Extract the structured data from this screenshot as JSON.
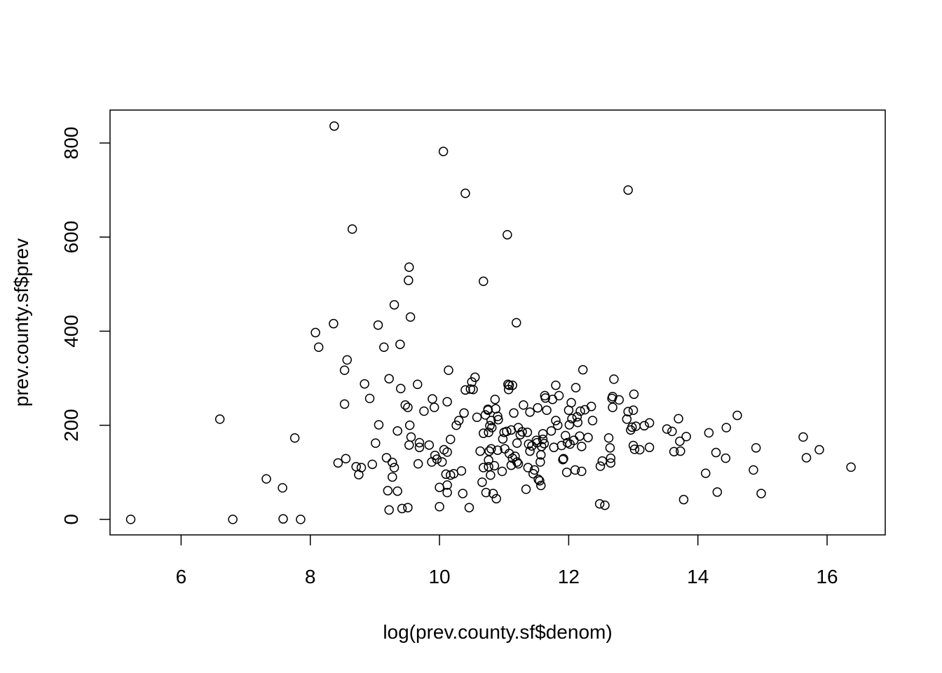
{
  "chart_data": {
    "type": "scatter",
    "title": "",
    "xlabel": "log(prev.county.sf$denom)",
    "ylabel": "prev.county.sf$prev",
    "xlim": [
      4.9,
      16.9
    ],
    "ylim": [
      -33,
      870
    ],
    "x_ticks": [
      6,
      8,
      10,
      12,
      14,
      16
    ],
    "y_ticks": [
      0,
      200,
      400,
      600,
      800
    ],
    "grid": false,
    "marker": "open-circle",
    "marker_color": "#000000",
    "series": [
      {
        "points": [
          [
            5.22,
            0
          ],
          [
            6.6,
            213
          ],
          [
            6.8,
            0
          ],
          [
            7.32,
            86
          ],
          [
            7.57,
            67
          ],
          [
            7.58,
            1
          ],
          [
            7.76,
            173
          ],
          [
            7.85,
            0
          ],
          [
            8.08,
            397
          ],
          [
            8.13,
            366
          ],
          [
            8.36,
            416
          ],
          [
            8.37,
            836
          ],
          [
            8.43,
            120
          ],
          [
            8.53,
            317
          ],
          [
            8.53,
            245
          ],
          [
            8.57,
            339
          ],
          [
            8.55,
            129
          ],
          [
            8.65,
            617
          ],
          [
            8.71,
            112
          ],
          [
            8.75,
            95
          ],
          [
            8.79,
            110
          ],
          [
            8.84,
            288
          ],
          [
            8.92,
            257
          ],
          [
            8.96,
            117
          ],
          [
            9.01,
            162
          ],
          [
            9.05,
            413
          ],
          [
            9.06,
            201
          ],
          [
            9.14,
            366
          ],
          [
            9.18,
            131
          ],
          [
            9.2,
            61
          ],
          [
            9.22,
            299
          ],
          [
            9.22,
            20
          ],
          [
            9.27,
            121
          ],
          [
            9.27,
            90
          ],
          [
            9.3,
            110
          ],
          [
            9.3,
            456
          ],
          [
            9.35,
            188
          ],
          [
            9.35,
            60
          ],
          [
            9.39,
            372
          ],
          [
            9.4,
            278
          ],
          [
            9.42,
            23
          ],
          [
            9.47,
            243
          ],
          [
            9.51,
            25
          ],
          [
            9.51,
            238
          ],
          [
            9.53,
            536
          ],
          [
            9.52,
            508
          ],
          [
            9.53,
            158
          ],
          [
            9.54,
            200
          ],
          [
            9.55,
            430
          ],
          [
            9.56,
            175
          ],
          [
            9.66,
            287
          ],
          [
            9.67,
            118
          ],
          [
            9.69,
            163
          ],
          [
            9.69,
            153
          ],
          [
            9.76,
            230
          ],
          [
            9.84,
            158
          ],
          [
            9.88,
            122
          ],
          [
            9.89,
            256
          ],
          [
            9.92,
            238
          ],
          [
            9.93,
            136
          ],
          [
            9.96,
            128
          ],
          [
            10.0,
            27
          ],
          [
            10.0,
            68
          ],
          [
            10.04,
            122
          ],
          [
            10.06,
            782
          ],
          [
            10.07,
            148
          ],
          [
            10.1,
            96
          ],
          [
            10.12,
            143
          ],
          [
            10.12,
            250
          ],
          [
            10.12,
            73
          ],
          [
            10.12,
            57
          ],
          [
            10.14,
            317
          ],
          [
            10.17,
            94
          ],
          [
            10.17,
            170
          ],
          [
            10.22,
            97
          ],
          [
            10.26,
            200
          ],
          [
            10.3,
            210
          ],
          [
            10.34,
            103
          ],
          [
            10.36,
            55
          ],
          [
            10.38,
            226
          ],
          [
            10.4,
            693
          ],
          [
            10.4,
            275
          ],
          [
            10.46,
            25
          ],
          [
            10.48,
            277
          ],
          [
            10.5,
            292
          ],
          [
            10.52,
            276
          ],
          [
            10.55,
            302
          ],
          [
            10.58,
            217
          ],
          [
            10.63,
            145
          ],
          [
            10.66,
            79
          ],
          [
            10.68,
            183
          ],
          [
            10.68,
            110
          ],
          [
            10.68,
            506
          ],
          [
            10.71,
            222
          ],
          [
            10.72,
            57
          ],
          [
            10.75,
            234
          ],
          [
            10.75,
            232
          ],
          [
            10.76,
            126
          ],
          [
            10.76,
            112
          ],
          [
            10.76,
            185
          ],
          [
            10.77,
            145
          ],
          [
            10.78,
            199
          ],
          [
            10.79,
            94
          ],
          [
            10.8,
            150
          ],
          [
            10.8,
            210
          ],
          [
            10.81,
            195
          ],
          [
            10.83,
            55
          ],
          [
            10.85,
            114
          ],
          [
            10.86,
            255
          ],
          [
            10.87,
            235
          ],
          [
            10.88,
            44
          ],
          [
            10.9,
            147
          ],
          [
            10.9,
            219
          ],
          [
            10.91,
            212
          ],
          [
            10.97,
            102
          ],
          [
            10.98,
            171
          ],
          [
            11.0,
            185
          ],
          [
            11.01,
            150
          ],
          [
            11.04,
            187
          ],
          [
            11.05,
            605
          ],
          [
            11.06,
            287
          ],
          [
            11.07,
            276
          ],
          [
            11.08,
            285
          ],
          [
            11.08,
            140
          ],
          [
            11.11,
            190
          ],
          [
            11.11,
            115
          ],
          [
            11.13,
            130
          ],
          [
            11.13,
            285
          ],
          [
            11.15,
            226
          ],
          [
            11.17,
            134
          ],
          [
            11.19,
            418
          ],
          [
            11.2,
            162
          ],
          [
            11.2,
            122
          ],
          [
            11.22,
            195
          ],
          [
            11.22,
            118
          ],
          [
            11.25,
            180
          ],
          [
            11.28,
            186
          ],
          [
            11.3,
            243
          ],
          [
            11.34,
            64
          ],
          [
            11.36,
            185
          ],
          [
            11.37,
            110
          ],
          [
            11.38,
            160
          ],
          [
            11.4,
            145
          ],
          [
            11.4,
            228
          ],
          [
            11.43,
            156
          ],
          [
            11.45,
            97
          ],
          [
            11.47,
            105
          ],
          [
            11.5,
            168
          ],
          [
            11.51,
            163
          ],
          [
            11.52,
            237
          ],
          [
            11.53,
            85
          ],
          [
            11.55,
            82
          ],
          [
            11.56,
            122
          ],
          [
            11.57,
            72
          ],
          [
            11.57,
            137
          ],
          [
            11.58,
            155
          ],
          [
            11.6,
            182
          ],
          [
            11.6,
            170
          ],
          [
            11.62,
            161
          ],
          [
            11.63,
            263
          ],
          [
            11.64,
            258
          ],
          [
            11.66,
            232
          ],
          [
            11.73,
            188
          ],
          [
            11.75,
            255
          ],
          [
            11.77,
            153
          ],
          [
            11.8,
            210
          ],
          [
            11.8,
            285
          ],
          [
            11.83,
            200
          ],
          [
            11.85,
            263
          ],
          [
            11.89,
            157
          ],
          [
            11.91,
            127
          ],
          [
            11.92,
            129
          ],
          [
            11.95,
            178
          ],
          [
            11.97,
            100
          ],
          [
            11.98,
            163
          ],
          [
            12.0,
            232
          ],
          [
            12.01,
            201
          ],
          [
            12.02,
            160
          ],
          [
            12.04,
            248
          ],
          [
            12.05,
            214
          ],
          [
            12.08,
            168
          ],
          [
            12.1,
            105
          ],
          [
            12.11,
            280
          ],
          [
            12.13,
            218
          ],
          [
            12.14,
            206
          ],
          [
            12.17,
            177
          ],
          [
            12.18,
            230
          ],
          [
            12.2,
            155
          ],
          [
            12.2,
            102
          ],
          [
            12.22,
            318
          ],
          [
            12.25,
            233
          ],
          [
            12.3,
            174
          ],
          [
            12.35,
            240
          ],
          [
            12.37,
            210
          ],
          [
            12.48,
            33
          ],
          [
            12.49,
            113
          ],
          [
            12.52,
            124
          ],
          [
            12.56,
            30
          ],
          [
            12.62,
            173
          ],
          [
            12.64,
            152
          ],
          [
            12.65,
            120
          ],
          [
            12.65,
            130
          ],
          [
            12.67,
            257
          ],
          [
            12.68,
            261
          ],
          [
            12.68,
            238
          ],
          [
            12.7,
            298
          ],
          [
            12.78,
            254
          ],
          [
            12.9,
            213
          ],
          [
            12.92,
            700
          ],
          [
            12.92,
            229
          ],
          [
            12.96,
            190
          ],
          [
            12.98,
            196
          ],
          [
            13.0,
            232
          ],
          [
            13.0,
            157
          ],
          [
            13.01,
            266
          ],
          [
            13.02,
            149
          ],
          [
            13.04,
            198
          ],
          [
            13.1,
            148
          ],
          [
            13.17,
            199
          ],
          [
            13.25,
            205
          ],
          [
            13.25,
            153
          ],
          [
            13.52,
            192
          ],
          [
            13.6,
            187
          ],
          [
            13.63,
            144
          ],
          [
            13.7,
            214
          ],
          [
            13.72,
            166
          ],
          [
            13.73,
            145
          ],
          [
            13.78,
            42
          ],
          [
            13.82,
            176
          ],
          [
            14.12,
            98
          ],
          [
            14.17,
            184
          ],
          [
            14.28,
            142
          ],
          [
            14.3,
            58
          ],
          [
            14.43,
            130
          ],
          [
            14.44,
            195
          ],
          [
            14.61,
            221
          ],
          [
            14.86,
            105
          ],
          [
            14.9,
            152
          ],
          [
            14.98,
            55
          ],
          [
            15.63,
            175
          ],
          [
            15.68,
            131
          ],
          [
            15.88,
            148
          ],
          [
            16.37,
            111
          ]
        ]
      }
    ]
  }
}
